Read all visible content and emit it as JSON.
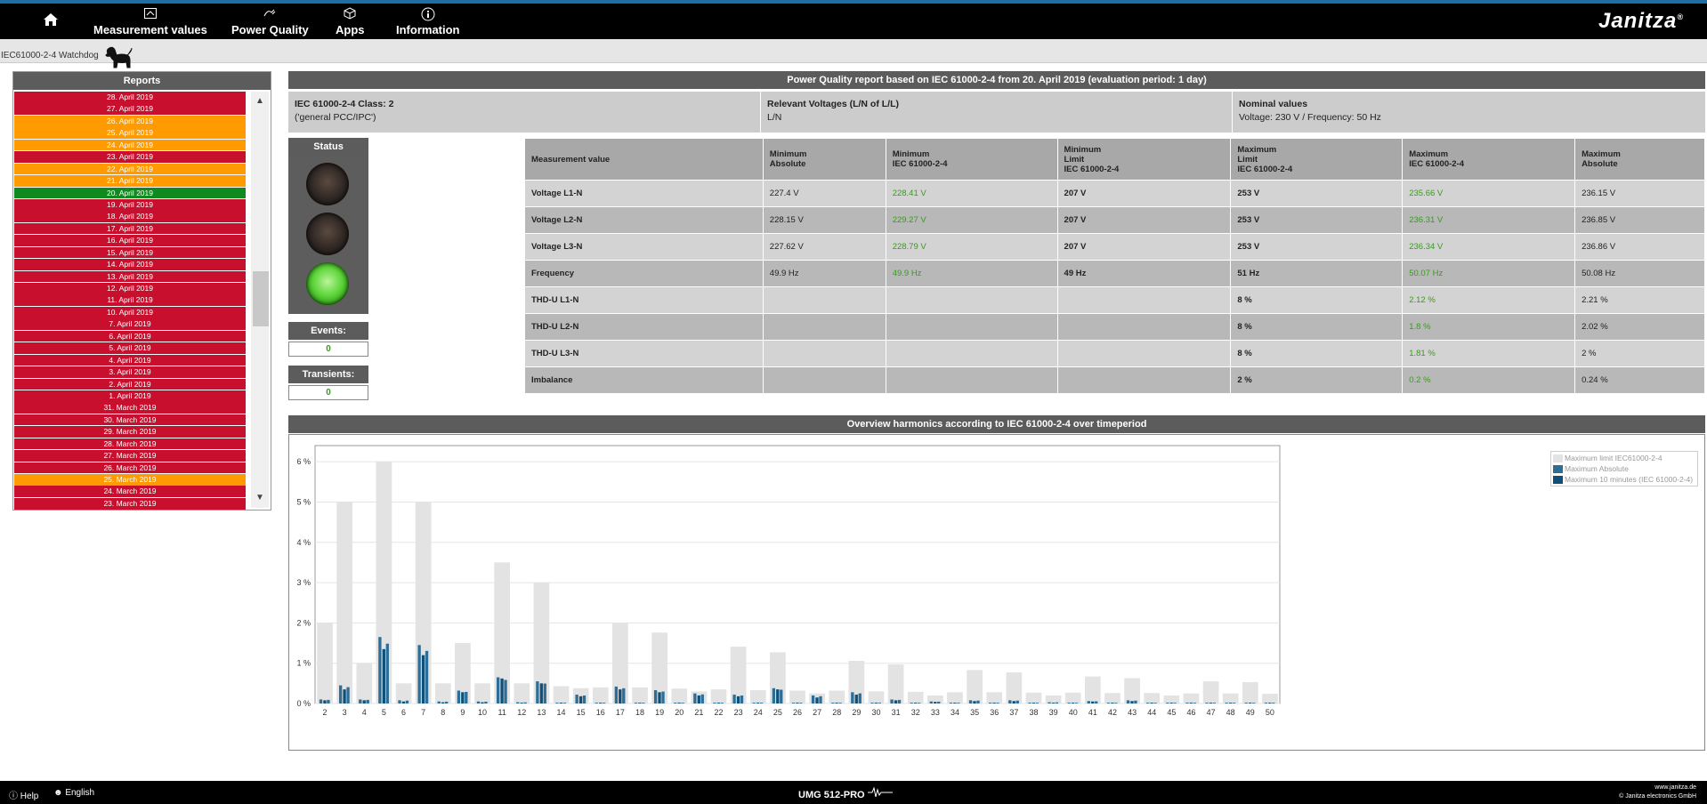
{
  "nav": {
    "home_icon": "home-icon",
    "items": [
      {
        "label": "Measurement values",
        "icon": "meter-icon"
      },
      {
        "label": "Power Quality",
        "icon": "power-plug-icon"
      },
      {
        "label": "Apps",
        "icon": "cube-icon"
      },
      {
        "label": "Information",
        "icon": "info-icon"
      }
    ],
    "brand": "Janitza",
    "brand_mark": "®"
  },
  "breadcrumb": "IEC61000-2-4 Watchdog",
  "reports": {
    "title": "Reports",
    "colors": {
      "red": "#c8102e",
      "orange": "#ff9a00",
      "green": "#0f8a1e"
    },
    "items": [
      {
        "label": "28. April 2019",
        "status": "red"
      },
      {
        "label": "27. April 2019",
        "status": "red"
      },
      {
        "label": "26. April 2019",
        "status": "orange"
      },
      {
        "label": "25. April 2019",
        "status": "orange"
      },
      {
        "label": "24. April 2019",
        "status": "orange"
      },
      {
        "label": "23. April 2019",
        "status": "red"
      },
      {
        "label": "22. April 2019",
        "status": "orange"
      },
      {
        "label": "21. April 2019",
        "status": "orange"
      },
      {
        "label": "20. April 2019",
        "status": "green"
      },
      {
        "label": "19. April 2019",
        "status": "red"
      },
      {
        "label": "18. April 2019",
        "status": "red"
      },
      {
        "label": "17. April 2019",
        "status": "red"
      },
      {
        "label": "16. April 2019",
        "status": "red"
      },
      {
        "label": "15. April 2019",
        "status": "red"
      },
      {
        "label": "14. April 2019",
        "status": "red"
      },
      {
        "label": "13. April 2019",
        "status": "red"
      },
      {
        "label": "12. April 2019",
        "status": "red"
      },
      {
        "label": "11. April 2019",
        "status": "red"
      },
      {
        "label": "10. April 2019",
        "status": "red"
      },
      {
        "label": "7. April 2019",
        "status": "red"
      },
      {
        "label": "6. April 2019",
        "status": "red"
      },
      {
        "label": "5. April 2019",
        "status": "red"
      },
      {
        "label": "4. April 2019",
        "status": "red"
      },
      {
        "label": "3. April 2019",
        "status": "red"
      },
      {
        "label": "2. April 2019",
        "status": "red"
      },
      {
        "label": "1. April 2019",
        "status": "red"
      },
      {
        "label": "31. March 2019",
        "status": "red"
      },
      {
        "label": "30. March 2019",
        "status": "red"
      },
      {
        "label": "29. March 2019",
        "status": "red"
      },
      {
        "label": "28. March 2019",
        "status": "red"
      },
      {
        "label": "27. March 2019",
        "status": "red"
      },
      {
        "label": "26. March 2019",
        "status": "red"
      },
      {
        "label": "25. March 2019",
        "status": "orange"
      },
      {
        "label": "24. March 2019",
        "status": "red"
      },
      {
        "label": "23. March 2019",
        "status": "red"
      }
    ]
  },
  "report": {
    "title": "Power Quality report based on IEC 61000-2-4 from 20. April 2019 (evaluation period: 1 day)",
    "info": [
      {
        "title": "IEC 61000-2-4 Class: 2",
        "value": "('general PCC/IPC')"
      },
      {
        "title": "Relevant Voltages (L/N of L/L)",
        "value": "L/N"
      },
      {
        "title": "Nominal values",
        "value": "Voltage: 230 V / Frequency: 50 Hz"
      }
    ],
    "status_label": "Status",
    "status_light": "green",
    "events_label": "Events:",
    "events_value": "0",
    "transients_label": "Transients:",
    "transients_value": "0"
  },
  "table": {
    "headers": [
      [
        "Measurement value"
      ],
      [
        "Minimum",
        "Absolute"
      ],
      [
        "Minimum",
        "IEC 61000-2-4"
      ],
      [
        "Minimum",
        "Limit",
        "IEC 61000-2-4"
      ],
      [
        "Maximum",
        "Limit",
        "IEC 61000-2-4"
      ],
      [
        "Maximum",
        "IEC 61000-2-4"
      ],
      [
        "Maximum",
        "Absolute"
      ]
    ],
    "rows": [
      [
        "Voltage L1-N",
        "227.4 V",
        "228.41 V",
        "207 V",
        "253 V",
        "235.66 V",
        "236.15 V"
      ],
      [
        "Voltage L2-N",
        "228.15 V",
        "229.27 V",
        "207 V",
        "253 V",
        "236.31 V",
        "236.85 V"
      ],
      [
        "Voltage L3-N",
        "227.62 V",
        "228.79 V",
        "207 V",
        "253 V",
        "236.34 V",
        "236.86 V"
      ],
      [
        "Frequency",
        "49.9 Hz",
        "49.9 Hz",
        "49 Hz",
        "51 Hz",
        "50.07 Hz",
        "50.08 Hz"
      ],
      [
        "THD-U L1-N",
        "",
        "",
        "",
        "8 %",
        "2.12 %",
        "2.21 %"
      ],
      [
        "THD-U L2-N",
        "",
        "",
        "",
        "8 %",
        "1.8 %",
        "2.02 %"
      ],
      [
        "THD-U L3-N",
        "",
        "",
        "",
        "8 %",
        "1.81 %",
        "2 %"
      ],
      [
        "Imbalance",
        "",
        "",
        "",
        "2 %",
        "0.2 %",
        "0.24 %"
      ]
    ]
  },
  "harmonics_title": "Overview harmonics according to IEC 61000-2-4 over timeperiod",
  "chart_data": {
    "type": "bar",
    "ylim": [
      0,
      6.4
    ],
    "yticks": [
      "0 %",
      "1 %",
      "2 %",
      "3 %",
      "4 %",
      "5 %",
      "6 %"
    ],
    "grid": true,
    "legend_position": "top-right",
    "categories": [
      "2",
      "3",
      "4",
      "5",
      "6",
      "7",
      "8",
      "9",
      "10",
      "11",
      "12",
      "13",
      "14",
      "15",
      "16",
      "17",
      "18",
      "19",
      "20",
      "21",
      "22",
      "23",
      "24",
      "25",
      "26",
      "27",
      "28",
      "29",
      "30",
      "31",
      "32",
      "33",
      "34",
      "35",
      "36",
      "37",
      "38",
      "39",
      "40",
      "41",
      "42",
      "43",
      "44",
      "45",
      "46",
      "47",
      "48",
      "49",
      "50"
    ],
    "series": [
      {
        "name": "Maximum limit IEC61000-2-4",
        "color": "#e3e3e3",
        "values": [
          2.0,
          5.0,
          1.0,
          6.0,
          0.5,
          5.0,
          0.5,
          1.5,
          0.5,
          3.5,
          0.5,
          3.0,
          0.43,
          0.38,
          0.4,
          2.0,
          0.4,
          1.76,
          0.37,
          0.3,
          0.35,
          1.41,
          0.33,
          1.27,
          0.32,
          0.25,
          0.32,
          1.06,
          0.3,
          0.97,
          0.29,
          0.2,
          0.28,
          0.83,
          0.28,
          0.77,
          0.27,
          0.2,
          0.27,
          0.67,
          0.26,
          0.63,
          0.26,
          0.2,
          0.25,
          0.55,
          0.25,
          0.53,
          0.24
        ]
      },
      {
        "name": "Maximum Absolute",
        "color": "#2d6d96",
        "values": [
          0.1,
          0.45,
          0.1,
          1.65,
          0.08,
          1.45,
          0.05,
          0.32,
          0.05,
          0.65,
          0.03,
          0.55,
          0.02,
          0.22,
          0.02,
          0.42,
          0.02,
          0.33,
          0.02,
          0.25,
          0.02,
          0.22,
          0.02,
          0.38,
          0.02,
          0.2,
          0.02,
          0.28,
          0.02,
          0.1,
          0.02,
          0.05,
          0.02,
          0.08,
          0.02,
          0.08,
          0.02,
          0.03,
          0.02,
          0.06,
          0.02,
          0.08,
          0.02,
          0.02,
          0.02,
          0.02,
          0.02,
          0.02,
          0.02
        ]
      },
      {
        "name": "Maximum 10 minutes (IEC 61000-2-4)",
        "color": "#0f5078",
        "values": [
          0.08,
          0.35,
          0.08,
          1.35,
          0.05,
          1.2,
          0.03,
          0.28,
          0.03,
          0.62,
          0.02,
          0.5,
          0.02,
          0.18,
          0.02,
          0.35,
          0.02,
          0.28,
          0.02,
          0.2,
          0.02,
          0.18,
          0.02,
          0.35,
          0.02,
          0.15,
          0.02,
          0.22,
          0.02,
          0.08,
          0.02,
          0.04,
          0.02,
          0.06,
          0.02,
          0.06,
          0.02,
          0.02,
          0.02,
          0.05,
          0.02,
          0.06,
          0.02,
          0.02,
          0.02,
          0.02,
          0.02,
          0.02,
          0.02
        ]
      }
    ]
  },
  "footer": {
    "help": "Help",
    "language": "English",
    "device": "UMG 512-PRO",
    "site": "www.janitza.de",
    "copyright": "© Janitza electronics GmbH"
  }
}
